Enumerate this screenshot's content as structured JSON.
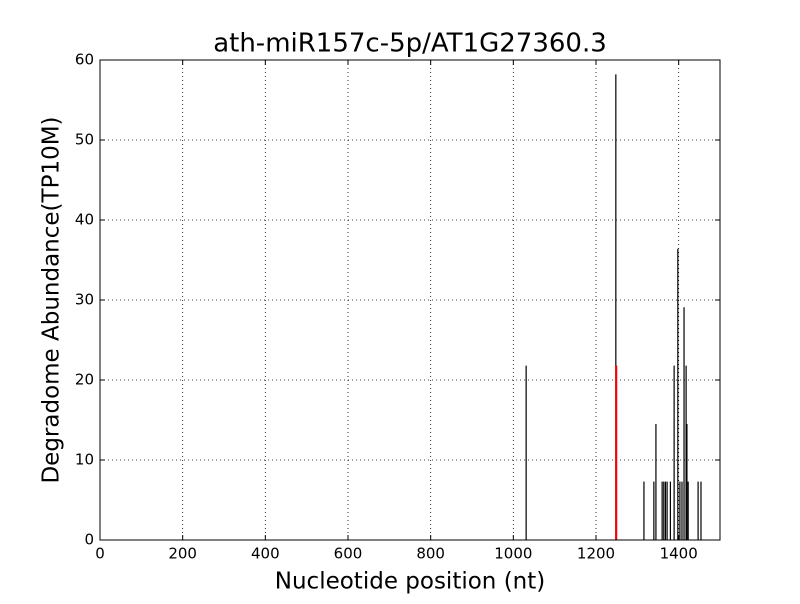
{
  "chart_data": {
    "type": "stem",
    "title": "ath-miR157c-5p/AT1G27360.3",
    "x_label": "Nucleotide position (nt)",
    "y_label": "Degradome Abundance(TP10M)",
    "xlim": [
      0,
      1500
    ],
    "xticks": [
      0,
      200,
      400,
      600,
      800,
      1000,
      1200,
      1400
    ],
    "ylim": [
      0,
      60
    ],
    "yticks": [
      0,
      10,
      20,
      30,
      40,
      50,
      60
    ],
    "grid": true,
    "series": [
      {
        "color": "#000000",
        "x": [
          1031,
          1248,
          1316,
          1340,
          1345,
          1360,
          1364,
          1368,
          1372,
          1380,
          1389,
          1398,
          1403,
          1408,
          1413,
          1418,
          1420,
          1423,
          1447,
          1454
        ],
        "values": [
          21.8,
          58.2,
          7.3,
          7.3,
          14.5,
          7.3,
          7.3,
          7.3,
          7.3,
          7.3,
          21.8,
          36.4,
          7.3,
          7.3,
          29.1,
          21.8,
          14.5,
          7.3,
          7.3,
          7.3
        ]
      },
      {
        "color": "#ff0000",
        "x": [
          1249
        ],
        "values": [
          21.8
        ]
      }
    ]
  }
}
